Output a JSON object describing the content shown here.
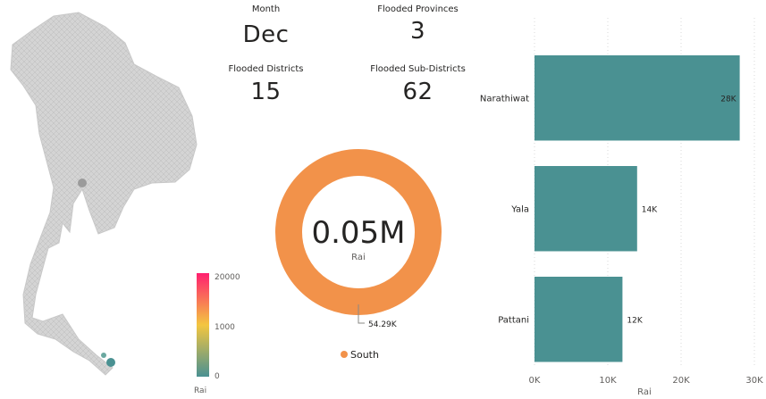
{
  "kpis": {
    "month": {
      "label": "Month",
      "value": "Dec"
    },
    "provinces": {
      "label": "Flooded Provinces",
      "value": "3"
    },
    "districts": {
      "label": "Flooded Districts",
      "value": "15"
    },
    "subdistricts": {
      "label": "Flooded Sub-Districts",
      "value": "62"
    }
  },
  "map": {
    "legend_ticks": [
      "20000",
      "1000",
      "0"
    ],
    "legend_title": "Rai",
    "gradient_colors": [
      "#ff1f6f",
      "#f3c640",
      "#4a9192"
    ]
  },
  "chart_data": [
    {
      "type": "pie",
      "style": "donut",
      "center_value": "0.05M",
      "center_label": "Rai",
      "slices": [
        {
          "label": "South",
          "value": 54290,
          "value_label": "54.29K",
          "color": "#f2924a"
        }
      ],
      "legend": {
        "placement": "bottom"
      }
    },
    {
      "type": "bar",
      "orientation": "horizontal",
      "categories": [
        "Narathiwat",
        "Yala",
        "Pattani"
      ],
      "values": [
        28000,
        14000,
        12000
      ],
      "value_labels": [
        "28K",
        "14K",
        "12K"
      ],
      "xlabel": "Rai",
      "xlim": [
        0,
        30000
      ],
      "xticks": [
        0,
        10000,
        20000,
        30000
      ],
      "xtick_labels": [
        "0K",
        "10K",
        "20K",
        "30K"
      ],
      "grid": true,
      "color": "#4a9192"
    }
  ]
}
